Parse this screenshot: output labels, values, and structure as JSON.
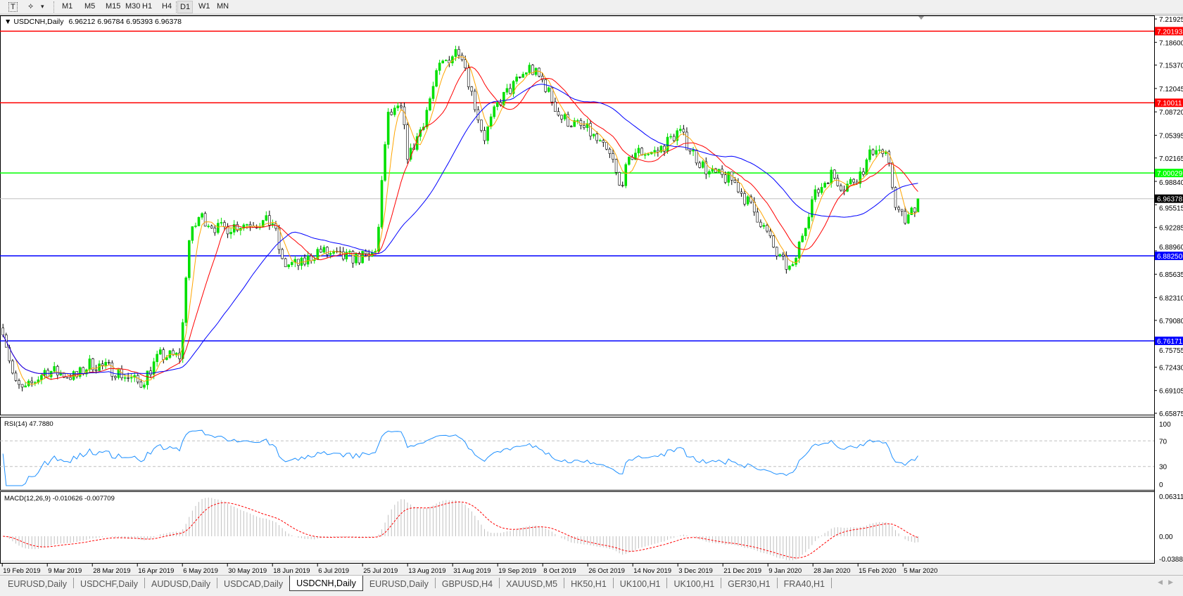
{
  "toolbar": {
    "tools": [
      {
        "icon": "text-tool-icon",
        "label": "T"
      },
      {
        "icon": "objects-tool-icon",
        "label": "⟡"
      },
      {
        "icon": "dropdown-arrow-icon",
        "label": "▾"
      }
    ],
    "timeframes": [
      "M1",
      "M5",
      "M15",
      "M30",
      "H1",
      "H4",
      "D1",
      "W1",
      "MN"
    ],
    "active_timeframe": "D1"
  },
  "chart": {
    "title": "USDCNH,Daily",
    "ohlc": "6.96212 6.96784 6.95393 6.96378",
    "price_axis": [
      "7.21925",
      "7.18600",
      "7.15370",
      "7.12045",
      "7.08720",
      "7.05395",
      "7.02165",
      "6.98840",
      "6.95515",
      "6.92285",
      "6.88960",
      "6.85635",
      "6.82310",
      "6.79080",
      "6.75755",
      "6.72430",
      "6.69105",
      "6.65875"
    ],
    "horizontal_lines": [
      {
        "price": "7.20193",
        "color": "#ff0000"
      },
      {
        "price": "7.10011",
        "color": "#ff0000"
      },
      {
        "price": "7.00029",
        "color": "#00ff00"
      },
      {
        "price": "6.88250",
        "color": "#0000ff"
      },
      {
        "price": "6.76171",
        "color": "#0000ff"
      }
    ],
    "current_price": "6.96378",
    "date_axis": [
      "19 Feb 2019",
      "9 Mar 2019",
      "28 Mar 2019",
      "16 Apr 2019",
      "6 May 2019",
      "30 May 2019",
      "18 Jun 2019",
      "6 Jul 2019",
      "25 Jul 2019",
      "13 Aug 2019",
      "31 Aug 2019",
      "19 Sep 2019",
      "8 Oct 2019",
      "26 Oct 2019",
      "14 Nov 2019",
      "3 Dec 2019",
      "21 Dec 2019",
      "9 Jan 2020",
      "28 Jan 2020",
      "15 Feb 2020",
      "5 Mar 2020"
    ],
    "colors": {
      "bull": "#00e000",
      "bear": "#000000",
      "ma_fast": "#ffa500",
      "ma_mid": "#ff0000",
      "ma_slow": "#0000ff",
      "rsi": "#1e90ff",
      "macd_hist": "#c0c0c0",
      "macd_signal": "#ff0000"
    }
  },
  "chart_data": {
    "type": "candlestick",
    "approx_close_path": [
      [
        "2019-02-19",
        6.78
      ],
      [
        "2019-02-24",
        6.7
      ],
      [
        "2019-02-28",
        6.69
      ],
      [
        "2019-03-09",
        6.72
      ],
      [
        "2019-03-22",
        6.71
      ],
      [
        "2019-03-28",
        6.73
      ],
      [
        "2019-04-07",
        6.72
      ],
      [
        "2019-04-18",
        6.7
      ],
      [
        "2019-04-26",
        6.74
      ],
      [
        "2019-05-05",
        6.74
      ],
      [
        "2019-05-08",
        6.9
      ],
      [
        "2019-05-13",
        6.94
      ],
      [
        "2019-05-21",
        6.92
      ],
      [
        "2019-06-03",
        6.93
      ],
      [
        "2019-06-13",
        6.93
      ],
      [
        "2019-06-17",
        6.87
      ],
      [
        "2019-06-25",
        6.87
      ],
      [
        "2019-07-02",
        6.89
      ],
      [
        "2019-07-11",
        6.88
      ],
      [
        "2019-07-24",
        6.88
      ],
      [
        "2019-07-27",
        6.9
      ],
      [
        "2019-07-31",
        7.08
      ],
      [
        "2019-08-06",
        7.09
      ],
      [
        "2019-08-09",
        7.02
      ],
      [
        "2019-08-15",
        7.07
      ],
      [
        "2019-08-22",
        7.15
      ],
      [
        "2019-08-28",
        7.17
      ],
      [
        "2019-08-31",
        7.18
      ],
      [
        "2019-09-05",
        7.11
      ],
      [
        "2019-09-10",
        7.05
      ],
      [
        "2019-09-16",
        7.1
      ],
      [
        "2019-09-29",
        7.15
      ],
      [
        "2019-10-05",
        7.13
      ],
      [
        "2019-10-12",
        7.08
      ],
      [
        "2019-10-24",
        7.06
      ],
      [
        "2019-11-03",
        7.02
      ],
      [
        "2019-11-06",
        6.98
      ],
      [
        "2019-11-12",
        7.03
      ],
      [
        "2019-11-22",
        7.03
      ],
      [
        "2019-12-01",
        7.06
      ],
      [
        "2019-12-09",
        7.02
      ],
      [
        "2019-12-14",
        7.0
      ],
      [
        "2019-12-24",
        6.99
      ],
      [
        "2019-12-30",
        6.96
      ],
      [
        "2020-01-05",
        6.93
      ],
      [
        "2020-01-12",
        6.88
      ],
      [
        "2020-01-18",
        6.86
      ],
      [
        "2020-01-21",
        6.9
      ],
      [
        "2020-01-26",
        6.96
      ],
      [
        "2020-02-03",
        7.0
      ],
      [
        "2020-02-09",
        6.98
      ],
      [
        "2020-02-16",
        7.0
      ],
      [
        "2020-02-22",
        7.04
      ],
      [
        "2020-02-27",
        7.02
      ],
      [
        "2020-03-02",
        6.95
      ],
      [
        "2020-03-06",
        6.93
      ],
      [
        "2020-03-09",
        6.95
      ],
      [
        "2020-03-11",
        6.96378
      ]
    ],
    "ylim": [
      6.65875,
      7.21925
    ]
  },
  "rsi": {
    "label": "RSI(14) 47.7880",
    "levels": [
      "100",
      "70",
      "30",
      "0"
    ]
  },
  "macd": {
    "label": "MACD(12,26,9) -0.010626 -0.007709",
    "levels": [
      "0.063113",
      "0.00",
      "-0.038873"
    ]
  },
  "tabs": [
    "EURUSD,Daily",
    "USDCHF,Daily",
    "AUDUSD,Daily",
    "USDCAD,Daily",
    "USDCNH,Daily",
    "EURUSD,Daily",
    "GBPUSD,H4",
    "XAUUSD,M5",
    "HK50,H1",
    "UK100,H1",
    "UK100,H1",
    "GER30,H1",
    "FRA40,H1"
  ],
  "active_tab": "USDCNH,Daily"
}
